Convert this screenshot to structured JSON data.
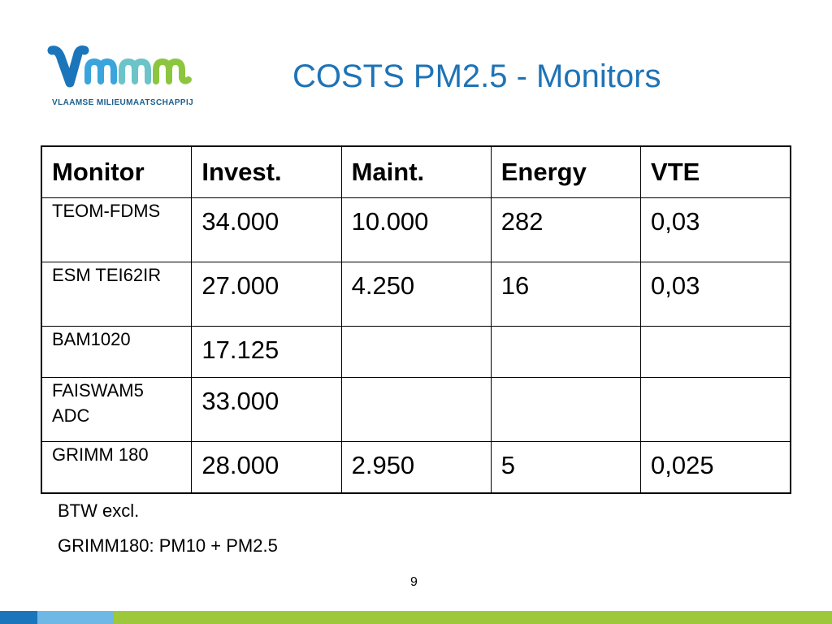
{
  "logo": {
    "text": "VLAAMSE MILIEUMAATSCHAPPIJ"
  },
  "title": "COSTS PM2.5 - Monitors",
  "table": {
    "headers": [
      "Monitor",
      "Invest.",
      "Maint.",
      "Energy",
      "VTE"
    ],
    "rows": [
      {
        "monitor": "TEOM-FDMS",
        "invest": "34.000",
        "maint": "10.000",
        "energy": "282",
        "vte": "0,03"
      },
      {
        "monitor": "ESM TEI62IR",
        "invest": "27.000",
        "maint": "4.250",
        "energy": "16",
        "vte": "0,03"
      },
      {
        "monitor": "BAM1020",
        "invest": "17.125",
        "maint": "",
        "energy": "",
        "vte": ""
      },
      {
        "monitor": "FAISWAM5 ADC",
        "invest": "33.000",
        "maint": "",
        "energy": "",
        "vte": ""
      },
      {
        "monitor": "GRIMM 180",
        "invest": "28.000",
        "maint": "2.950",
        "energy": "5",
        "vte": "0,025"
      }
    ]
  },
  "notes": [
    "BTW excl.",
    "GRIMM180: PM10 + PM2.5"
  ],
  "page_number": "9",
  "colors": {
    "title": "#1e73b6",
    "logo_blue": "#1b5e8f",
    "logo_green": "#8cc63f",
    "footer_dark_blue": "#1b75bb",
    "footer_light_blue": "#6fb7e4",
    "footer_green": "#9dc83b"
  }
}
